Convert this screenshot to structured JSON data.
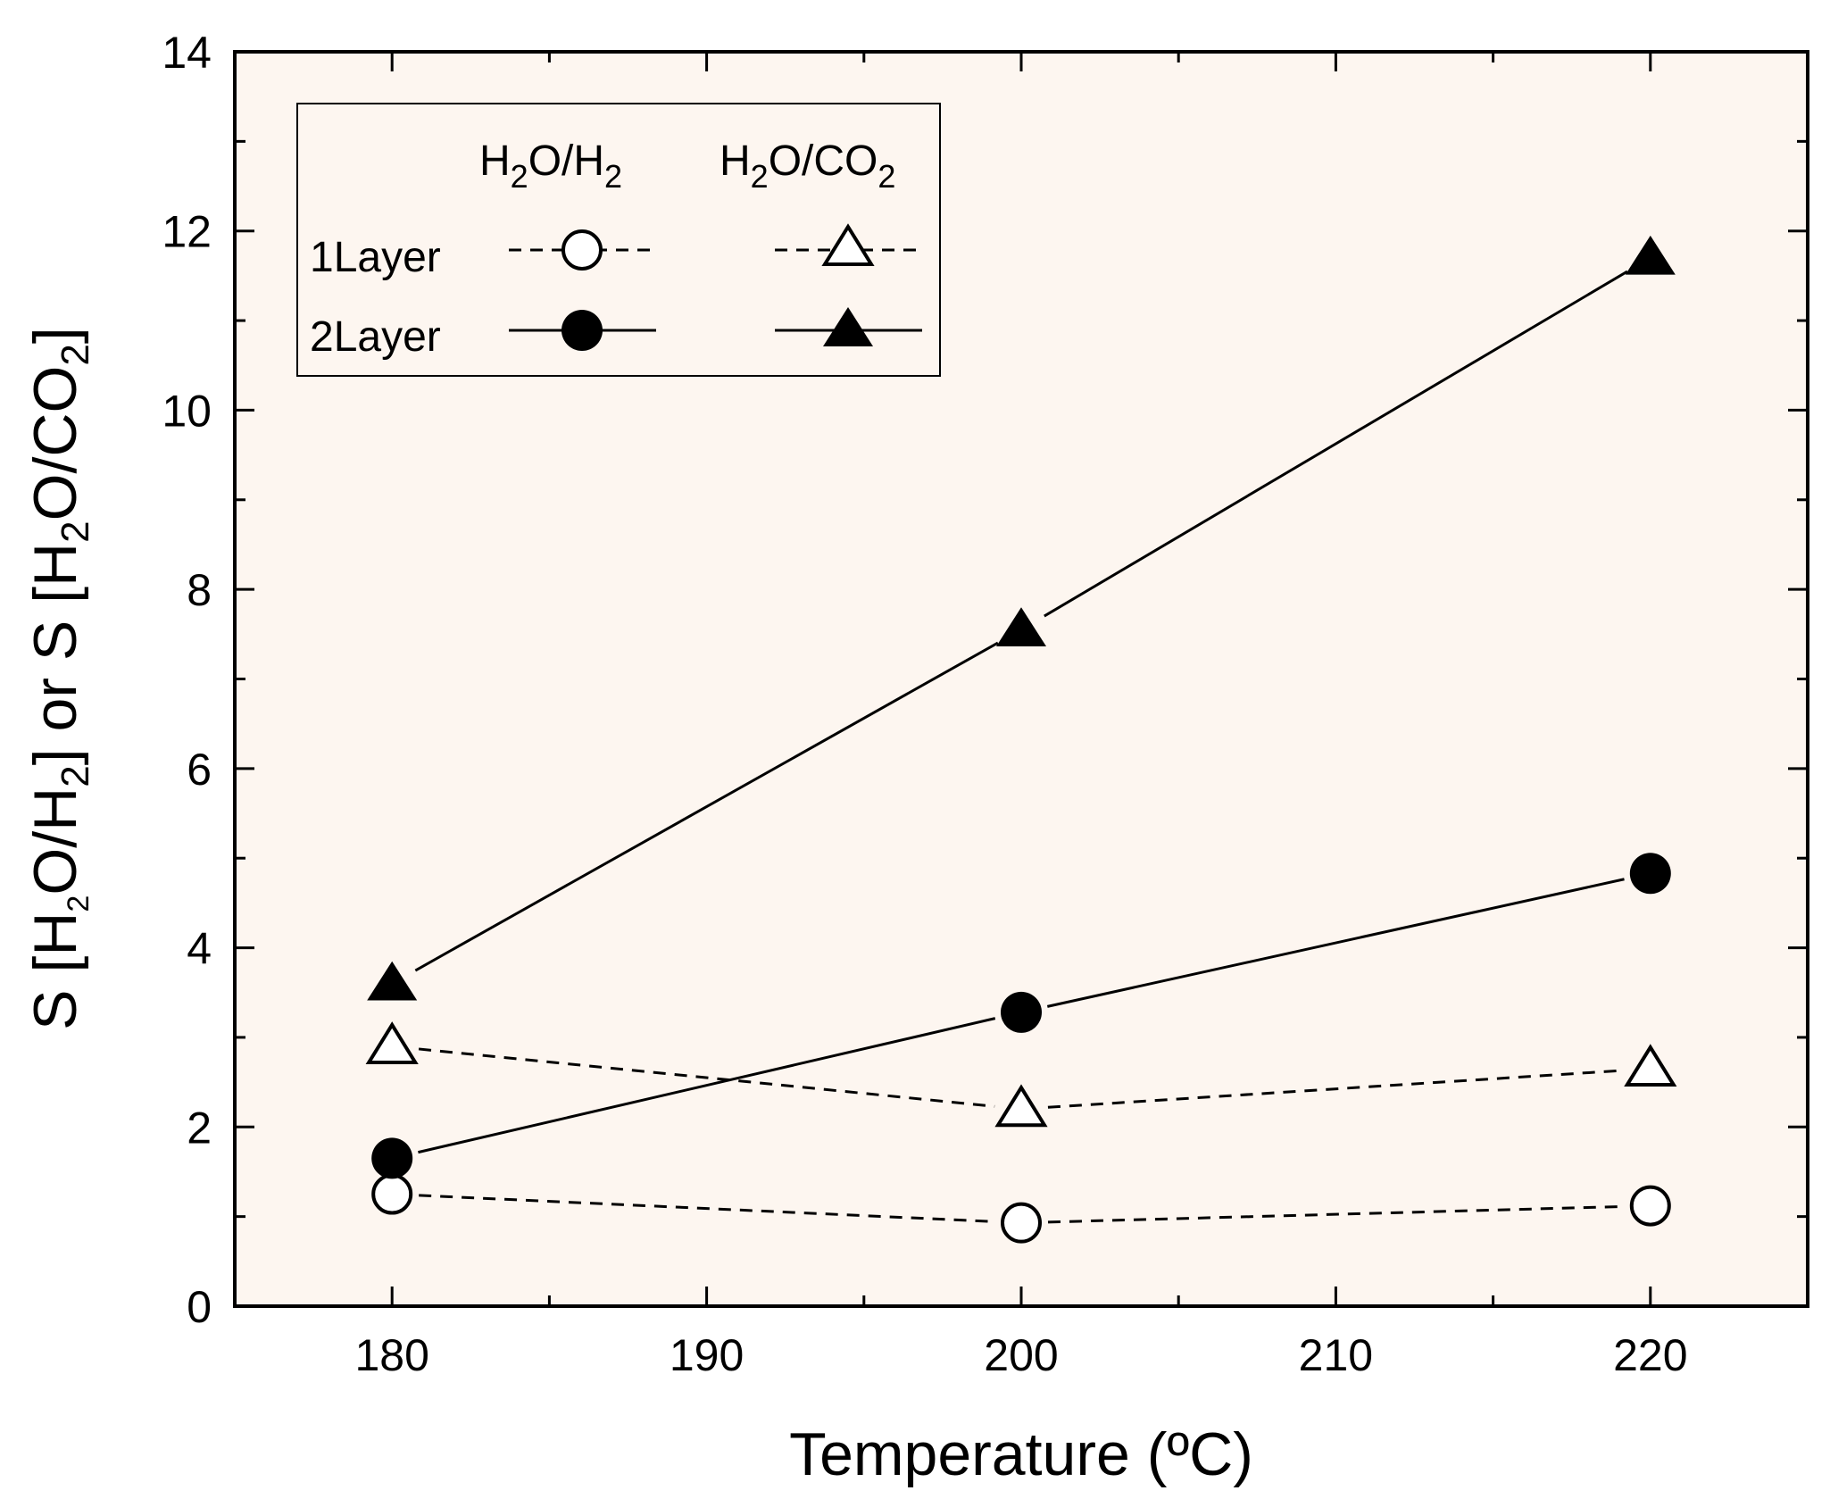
{
  "chart_data": {
    "type": "line",
    "xlabel": "Temperature (ºC)",
    "ylabel": "S [H2O/H2] or S [H2O/CO2]",
    "xlim": [
      175,
      225
    ],
    "ylim": [
      0,
      14
    ],
    "x_ticks": [
      "180",
      "190",
      "200",
      "210",
      "220"
    ],
    "y_ticks": [
      "0",
      "2",
      "4",
      "6",
      "8",
      "10",
      "12",
      "14"
    ],
    "background_color": "#fdf6f0",
    "legend": {
      "placement": "top-left",
      "column_headers": [
        "H2O/H2",
        "H2O/CO2"
      ],
      "row_labels": [
        "1Layer",
        "2Layer"
      ]
    },
    "series": [
      {
        "key": "1Layer-H2O/H2",
        "marker": "circle",
        "filled": false,
        "line": "dashed",
        "x": [
          180,
          200,
          220
        ],
        "values": [
          1.25,
          0.93,
          1.12
        ]
      },
      {
        "key": "1Layer-H2O/CO2",
        "marker": "triangle",
        "filled": false,
        "line": "dashed",
        "x": [
          180,
          200,
          220
        ],
        "values": [
          2.9,
          2.2,
          2.65
        ]
      },
      {
        "key": "2Layer-H2O/H2",
        "marker": "circle",
        "filled": true,
        "line": "solid",
        "x": [
          180,
          200,
          220
        ],
        "values": [
          1.65,
          3.28,
          4.83
        ]
      },
      {
        "key": "2Layer-H2O/CO2",
        "marker": "triangle",
        "filled": true,
        "line": "solid",
        "x": [
          180,
          200,
          220
        ],
        "values": [
          3.6,
          7.55,
          11.7
        ]
      }
    ]
  }
}
